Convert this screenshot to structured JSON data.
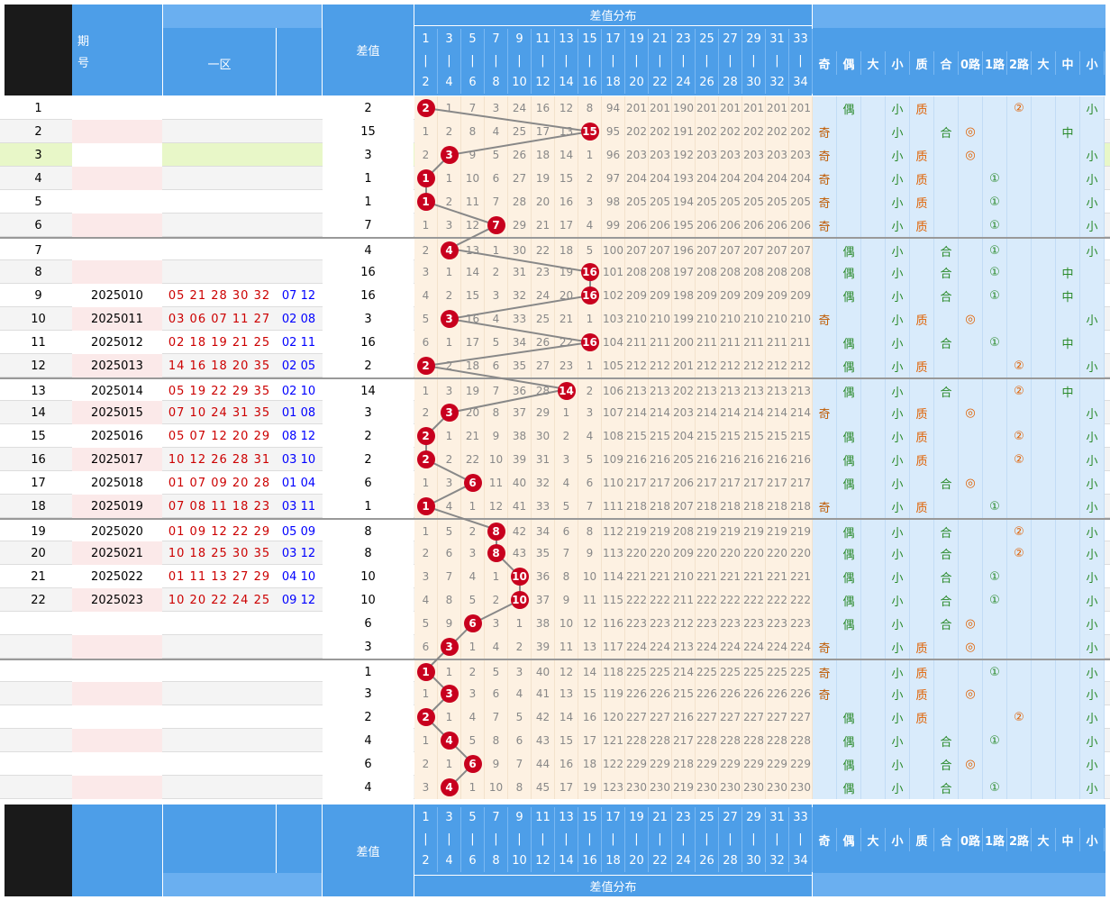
{
  "header": {
    "period_label": "期\n号",
    "zone_label": "一区",
    "diff_label": "差值",
    "dist_label": "差值分布",
    "col_top": [
      "1",
      "3",
      "5",
      "7",
      "9",
      "11",
      "13",
      "15",
      "17",
      "19",
      "21",
      "23",
      "25",
      "27",
      "29",
      "31",
      "33"
    ],
    "col_bot": [
      "2",
      "4",
      "6",
      "8",
      "10",
      "12",
      "14",
      "16",
      "18",
      "20",
      "22",
      "24",
      "26",
      "28",
      "30",
      "32",
      "34"
    ],
    "attr_cols": [
      "奇",
      "偶",
      "大",
      "小",
      "质",
      "合",
      "0路",
      "1路",
      "2路",
      "大",
      "中",
      "小"
    ],
    "footer_attr_cols": [
      "奇",
      "偶",
      "大",
      "小",
      "质",
      "合",
      "0路",
      "1路",
      "2路",
      "大",
      "中",
      "小"
    ]
  },
  "rows": [
    {
      "n": "1",
      "p": "",
      "nums": "",
      "blue": "",
      "d": "2",
      "cells": [
        "2",
        "1",
        "7",
        "3",
        "24",
        "16",
        "12",
        "8",
        "94",
        "201",
        "201",
        "190",
        "201",
        "201",
        "201",
        "201",
        "201"
      ],
      "attrs": [
        "",
        "偶",
        "",
        "小",
        "质",
        "",
        "",
        "",
        "②",
        "",
        "",
        "小"
      ]
    },
    {
      "n": "2",
      "p": "",
      "nums": "",
      "blue": "",
      "d": "15",
      "cells": [
        "1",
        "2",
        "8",
        "4",
        "25",
        "17",
        "13",
        "15",
        "95",
        "202",
        "202",
        "191",
        "202",
        "202",
        "202",
        "202",
        "202"
      ],
      "attrs": [
        "奇",
        "",
        "",
        "小",
        "",
        "合",
        "◎",
        "",
        "",
        "",
        "中",
        ""
      ]
    },
    {
      "n": "3",
      "p": "",
      "nums": "",
      "blue": "",
      "d": "3",
      "cells": [
        "2",
        "3",
        "9",
        "5",
        "26",
        "18",
        "14",
        "1",
        "96",
        "203",
        "203",
        "192",
        "203",
        "203",
        "203",
        "203",
        "203"
      ],
      "attrs": [
        "奇",
        "",
        "",
        "小",
        "质",
        "",
        "◎",
        "",
        "",
        "",
        "",
        "小"
      ]
    },
    {
      "n": "4",
      "p": "",
      "nums": "",
      "blue": "",
      "d": "1",
      "cells": [
        "1",
        "1",
        "10",
        "6",
        "27",
        "19",
        "15",
        "2",
        "97",
        "204",
        "204",
        "193",
        "204",
        "204",
        "204",
        "204",
        "204"
      ],
      "attrs": [
        "奇",
        "",
        "",
        "小",
        "质",
        "",
        "",
        "①",
        "",
        "",
        "",
        "小"
      ]
    },
    {
      "n": "5",
      "p": "",
      "nums": "",
      "blue": "",
      "d": "1",
      "cells": [
        "1",
        "2",
        "11",
        "7",
        "28",
        "20",
        "16",
        "3",
        "98",
        "205",
        "205",
        "194",
        "205",
        "205",
        "205",
        "205",
        "205"
      ],
      "attrs": [
        "奇",
        "",
        "",
        "小",
        "质",
        "",
        "",
        "①",
        "",
        "",
        "",
        "小"
      ]
    },
    {
      "n": "6",
      "p": "",
      "nums": "",
      "blue": "",
      "d": "7",
      "cells": [
        "1",
        "3",
        "12",
        "7",
        "29",
        "21",
        "17",
        "4",
        "99",
        "206",
        "206",
        "195",
        "206",
        "206",
        "206",
        "206",
        "206"
      ],
      "attrs": [
        "奇",
        "",
        "",
        "小",
        "质",
        "",
        "",
        "①",
        "",
        "",
        "",
        "小"
      ]
    },
    {
      "n": "7",
      "p": "",
      "nums": "",
      "blue": "",
      "d": "4",
      "cells": [
        "2",
        "4",
        "13",
        "1",
        "30",
        "22",
        "18",
        "5",
        "100",
        "207",
        "207",
        "196",
        "207",
        "207",
        "207",
        "207",
        "207"
      ],
      "attrs": [
        "",
        "偶",
        "",
        "小",
        "",
        "合",
        "",
        "①",
        "",
        "",
        "",
        "小"
      ]
    },
    {
      "n": "8",
      "p": "",
      "nums": "",
      "blue": "",
      "d": "16",
      "cells": [
        "3",
        "1",
        "14",
        "2",
        "31",
        "23",
        "19",
        "16",
        "101",
        "208",
        "208",
        "197",
        "208",
        "208",
        "208",
        "208",
        "208"
      ],
      "attrs": [
        "",
        "偶",
        "",
        "小",
        "",
        "合",
        "",
        "①",
        "",
        "",
        "中",
        ""
      ]
    },
    {
      "n": "9",
      "p": "2025010",
      "nums": "05 21 28 30 32",
      "blue": "07 12",
      "d": "16",
      "cells": [
        "4",
        "2",
        "15",
        "3",
        "32",
        "24",
        "20",
        "16",
        "102",
        "209",
        "209",
        "198",
        "209",
        "209",
        "209",
        "209",
        "209"
      ],
      "attrs": [
        "",
        "偶",
        "",
        "小",
        "",
        "合",
        "",
        "①",
        "",
        "",
        "中",
        ""
      ]
    },
    {
      "n": "10",
      "p": "2025011",
      "nums": "03 06 07 11 27",
      "blue": "02 08",
      "d": "3",
      "cells": [
        "5",
        "3",
        "16",
        "4",
        "33",
        "25",
        "21",
        "1",
        "103",
        "210",
        "210",
        "199",
        "210",
        "210",
        "210",
        "210",
        "210"
      ],
      "attrs": [
        "奇",
        "",
        "",
        "小",
        "质",
        "",
        "◎",
        "",
        "",
        "",
        "",
        "小"
      ]
    },
    {
      "n": "11",
      "p": "2025012",
      "nums": "02 18 19 21 25",
      "blue": "02 11",
      "d": "16",
      "cells": [
        "6",
        "1",
        "17",
        "5",
        "34",
        "26",
        "22",
        "16",
        "104",
        "211",
        "211",
        "200",
        "211",
        "211",
        "211",
        "211",
        "211"
      ],
      "attrs": [
        "",
        "偶",
        "",
        "小",
        "",
        "合",
        "",
        "①",
        "",
        "",
        "中",
        ""
      ]
    },
    {
      "n": "12",
      "p": "2025013",
      "nums": "14 16 18 20 35",
      "blue": "02 05",
      "d": "2",
      "cells": [
        "2",
        "2",
        "18",
        "6",
        "35",
        "27",
        "23",
        "1",
        "105",
        "212",
        "212",
        "201",
        "212",
        "212",
        "212",
        "212",
        "212"
      ],
      "attrs": [
        "",
        "偶",
        "",
        "小",
        "质",
        "",
        "",
        "",
        "②",
        "",
        "",
        "小"
      ]
    },
    {
      "n": "13",
      "p": "2025014",
      "nums": "05 19 22 29 35",
      "blue": "02 10",
      "d": "14",
      "cells": [
        "1",
        "3",
        "19",
        "7",
        "36",
        "28",
        "14",
        "2",
        "106",
        "213",
        "213",
        "202",
        "213",
        "213",
        "213",
        "213",
        "213"
      ],
      "attrs": [
        "",
        "偶",
        "",
        "小",
        "",
        "合",
        "",
        "",
        "②",
        "",
        "中",
        ""
      ]
    },
    {
      "n": "14",
      "p": "2025015",
      "nums": "07 10 24 31 35",
      "blue": "01 08",
      "d": "3",
      "cells": [
        "2",
        "3",
        "20",
        "8",
        "37",
        "29",
        "1",
        "3",
        "107",
        "214",
        "214",
        "203",
        "214",
        "214",
        "214",
        "214",
        "214"
      ],
      "attrs": [
        "奇",
        "",
        "",
        "小",
        "质",
        "",
        "◎",
        "",
        "",
        "",
        "",
        "小"
      ]
    },
    {
      "n": "15",
      "p": "2025016",
      "nums": "05 07 12 20 29",
      "blue": "08 12",
      "d": "2",
      "cells": [
        "2",
        "1",
        "21",
        "9",
        "38",
        "30",
        "2",
        "4",
        "108",
        "215",
        "215",
        "204",
        "215",
        "215",
        "215",
        "215",
        "215"
      ],
      "attrs": [
        "",
        "偶",
        "",
        "小",
        "质",
        "",
        "",
        "",
        "②",
        "",
        "",
        "小"
      ]
    },
    {
      "n": "16",
      "p": "2025017",
      "nums": "10 12 26 28 31",
      "blue": "03 10",
      "d": "2",
      "cells": [
        "2",
        "2",
        "22",
        "10",
        "39",
        "31",
        "3",
        "5",
        "109",
        "216",
        "216",
        "205",
        "216",
        "216",
        "216",
        "216",
        "216"
      ],
      "attrs": [
        "",
        "偶",
        "",
        "小",
        "质",
        "",
        "",
        "",
        "②",
        "",
        "",
        "小"
      ]
    },
    {
      "n": "17",
      "p": "2025018",
      "nums": "01 07 09 20 28",
      "blue": "01 04",
      "d": "6",
      "cells": [
        "1",
        "3",
        "6",
        "11",
        "40",
        "32",
        "4",
        "6",
        "110",
        "217",
        "217",
        "206",
        "217",
        "217",
        "217",
        "217",
        "217"
      ],
      "attrs": [
        "",
        "偶",
        "",
        "小",
        "",
        "合",
        "◎",
        "",
        "",
        "",
        "",
        "小"
      ]
    },
    {
      "n": "18",
      "p": "2025019",
      "nums": "07 08 11 18 23",
      "blue": "03 11",
      "d": "1",
      "cells": [
        "1",
        "4",
        "1",
        "12",
        "41",
        "33",
        "5",
        "7",
        "111",
        "218",
        "218",
        "207",
        "218",
        "218",
        "218",
        "218",
        "218"
      ],
      "attrs": [
        "奇",
        "",
        "",
        "小",
        "质",
        "",
        "",
        "①",
        "",
        "",
        "",
        "小"
      ]
    },
    {
      "n": "19",
      "p": "2025020",
      "nums": "01 09 12 22 29",
      "blue": "05 09",
      "d": "8",
      "cells": [
        "1",
        "5",
        "2",
        "8",
        "42",
        "34",
        "6",
        "8",
        "112",
        "219",
        "219",
        "208",
        "219",
        "219",
        "219",
        "219",
        "219"
      ],
      "attrs": [
        "",
        "偶",
        "",
        "小",
        "",
        "合",
        "",
        "",
        "②",
        "",
        "",
        "小"
      ]
    },
    {
      "n": "20",
      "p": "2025021",
      "nums": "10 18 25 30 35",
      "blue": "03 12",
      "d": "8",
      "cells": [
        "2",
        "6",
        "3",
        "8",
        "43",
        "35",
        "7",
        "9",
        "113",
        "220",
        "220",
        "209",
        "220",
        "220",
        "220",
        "220",
        "220"
      ],
      "attrs": [
        "",
        "偶",
        "",
        "小",
        "",
        "合",
        "",
        "",
        "②",
        "",
        "",
        "小"
      ]
    },
    {
      "n": "21",
      "p": "2025022",
      "nums": "01 11 13 27 29",
      "blue": "04 10",
      "d": "10",
      "cells": [
        "3",
        "7",
        "4",
        "1",
        "10",
        "36",
        "8",
        "10",
        "114",
        "221",
        "221",
        "210",
        "221",
        "221",
        "221",
        "221",
        "221"
      ],
      "attrs": [
        "",
        "偶",
        "",
        "小",
        "",
        "合",
        "",
        "①",
        "",
        "",
        "",
        "小"
      ]
    },
    {
      "n": "22",
      "p": "2025023",
      "nums": "10 20 22 24 25",
      "blue": "09 12",
      "d": "10",
      "cells": [
        "4",
        "8",
        "5",
        "2",
        "10",
        "37",
        "9",
        "11",
        "115",
        "222",
        "222",
        "211",
        "222",
        "222",
        "222",
        "222",
        "222"
      ],
      "attrs": [
        "",
        "偶",
        "",
        "小",
        "",
        "合",
        "",
        "①",
        "",
        "",
        "",
        "小"
      ]
    },
    {
      "n": "",
      "p": "",
      "nums": "",
      "blue": "",
      "d": "6",
      "cells": [
        "5",
        "9",
        "6",
        "3",
        "1",
        "38",
        "10",
        "12",
        "116",
        "223",
        "223",
        "212",
        "223",
        "223",
        "223",
        "223",
        "223"
      ],
      "attrs": [
        "",
        "偶",
        "",
        "小",
        "",
        "合",
        "◎",
        "",
        "",
        "",
        "",
        "小"
      ]
    },
    {
      "n": "",
      "p": "",
      "nums": "",
      "blue": "",
      "d": "3",
      "cells": [
        "6",
        "3",
        "1",
        "4",
        "2",
        "39",
        "11",
        "13",
        "117",
        "224",
        "224",
        "213",
        "224",
        "224",
        "224",
        "224",
        "224"
      ],
      "attrs": [
        "奇",
        "",
        "",
        "小",
        "质",
        "",
        "◎",
        "",
        "",
        "",
        "",
        "小"
      ]
    },
    {
      "n": "",
      "p": "",
      "nums": "",
      "blue": "",
      "d": "1",
      "cells": [
        "1",
        "1",
        "2",
        "5",
        "3",
        "40",
        "12",
        "14",
        "118",
        "225",
        "225",
        "214",
        "225",
        "225",
        "225",
        "225",
        "225"
      ],
      "attrs": [
        "奇",
        "",
        "",
        "小",
        "质",
        "",
        "",
        "①",
        "",
        "",
        "",
        "小"
      ]
    },
    {
      "n": "",
      "p": "",
      "nums": "",
      "blue": "",
      "d": "3",
      "cells": [
        "1",
        "3",
        "3",
        "6",
        "4",
        "41",
        "13",
        "15",
        "119",
        "226",
        "226",
        "215",
        "226",
        "226",
        "226",
        "226",
        "226"
      ],
      "attrs": [
        "奇",
        "",
        "",
        "小",
        "质",
        "",
        "◎",
        "",
        "",
        "",
        "",
        "小"
      ]
    },
    {
      "n": "",
      "p": "",
      "nums": "",
      "blue": "",
      "d": "2",
      "cells": [
        "2",
        "1",
        "4",
        "7",
        "5",
        "42",
        "14",
        "16",
        "120",
        "227",
        "227",
        "216",
        "227",
        "227",
        "227",
        "227",
        "227"
      ],
      "attrs": [
        "",
        "偶",
        "",
        "小",
        "质",
        "",
        "",
        "",
        "②",
        "",
        "",
        "小"
      ]
    },
    {
      "n": "",
      "p": "",
      "nums": "",
      "blue": "",
      "d": "4",
      "cells": [
        "1",
        "4",
        "5",
        "8",
        "6",
        "43",
        "15",
        "17",
        "121",
        "228",
        "228",
        "217",
        "228",
        "228",
        "228",
        "228",
        "228"
      ],
      "attrs": [
        "",
        "偶",
        "",
        "小",
        "",
        "合",
        "",
        "①",
        "",
        "",
        "",
        "小"
      ]
    },
    {
      "n": "",
      "p": "",
      "nums": "",
      "blue": "",
      "d": "6",
      "cells": [
        "2",
        "1",
        "6",
        "9",
        "7",
        "44",
        "16",
        "18",
        "122",
        "229",
        "229",
        "218",
        "229",
        "229",
        "229",
        "229",
        "229"
      ],
      "attrs": [
        "",
        "偶",
        "",
        "小",
        "",
        "合",
        "◎",
        "",
        "",
        "",
        "",
        "小"
      ]
    },
    {
      "n": "",
      "p": "",
      "nums": "",
      "blue": "",
      "d": "4",
      "cells": [
        "3",
        "4",
        "1",
        "10",
        "8",
        "45",
        "17",
        "19",
        "123",
        "230",
        "230",
        "219",
        "230",
        "230",
        "230",
        "230",
        "230"
      ],
      "attrs": [
        "",
        "偶",
        "",
        "小",
        "",
        "合",
        "",
        "①",
        "",
        "",
        "",
        "小"
      ]
    }
  ],
  "colors": {
    "header": "#4d9ee8",
    "ball": "#c8001e",
    "line": "#888888",
    "cell_bg": "#fdf1e2",
    "attr_bg": "#d9ebfb"
  }
}
